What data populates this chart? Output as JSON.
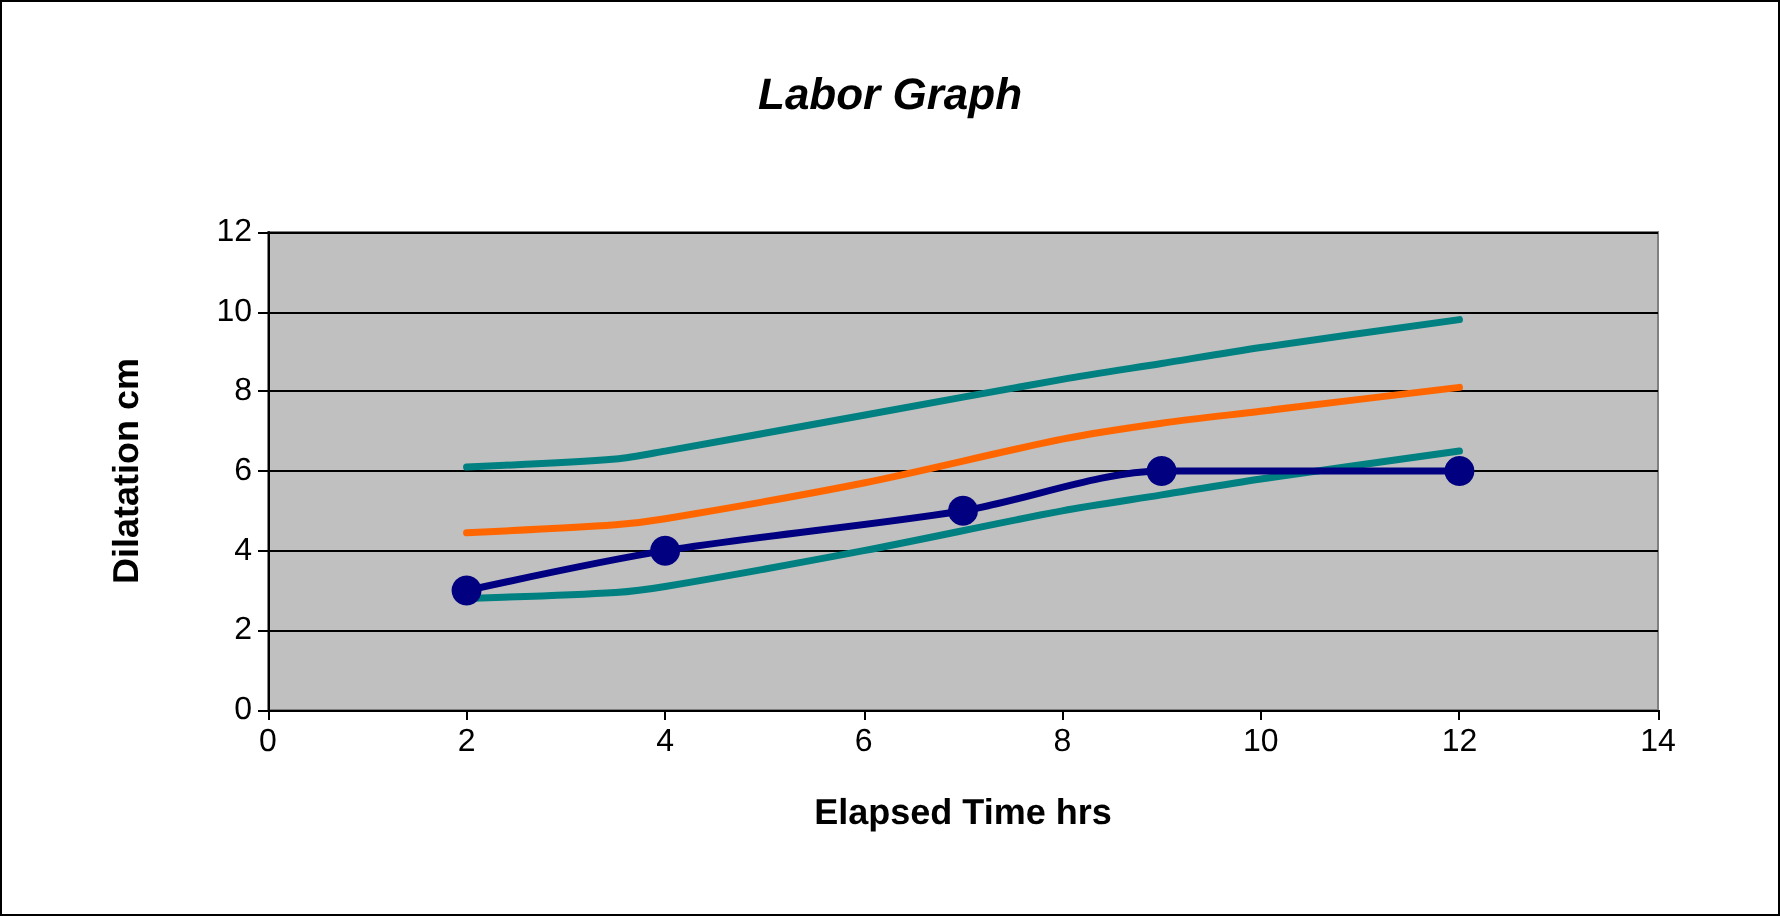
{
  "chart_data": {
    "type": "line",
    "title": "Labor Graph",
    "xlabel": "Elapsed Time hrs",
    "ylabel": "Dilatation cm",
    "xlim": [
      0,
      14
    ],
    "xticks": [
      0,
      2,
      4,
      6,
      8,
      10,
      12,
      14
    ],
    "ylim": [
      0,
      12
    ],
    "yticks": [
      0,
      2,
      4,
      6,
      8,
      10,
      12
    ],
    "grid": "y",
    "series": [
      {
        "color": "#008080",
        "marker": "none",
        "x": [
          2,
          3.5,
          4,
          6,
          8,
          9,
          10,
          12
        ],
        "values": [
          6.1,
          6.3,
          6.5,
          7.4,
          8.3,
          8.7,
          9.1,
          9.8
        ]
      },
      {
        "color": "#ff6600",
        "marker": "none",
        "x": [
          2,
          3.5,
          4,
          6,
          8,
          9,
          10,
          12
        ],
        "values": [
          4.45,
          4.65,
          4.8,
          5.7,
          6.8,
          7.2,
          7.5,
          8.1
        ]
      },
      {
        "color": "#008080",
        "marker": "none",
        "x": [
          2,
          3.5,
          4,
          6,
          8,
          9,
          10,
          12
        ],
        "values": [
          2.8,
          2.95,
          3.1,
          4.0,
          5.0,
          5.4,
          5.8,
          6.5
        ]
      },
      {
        "color": "#000080",
        "marker": "circle",
        "x": [
          2,
          4,
          7,
          9,
          12
        ],
        "values": [
          3,
          4,
          5,
          6,
          6
        ]
      }
    ]
  }
}
